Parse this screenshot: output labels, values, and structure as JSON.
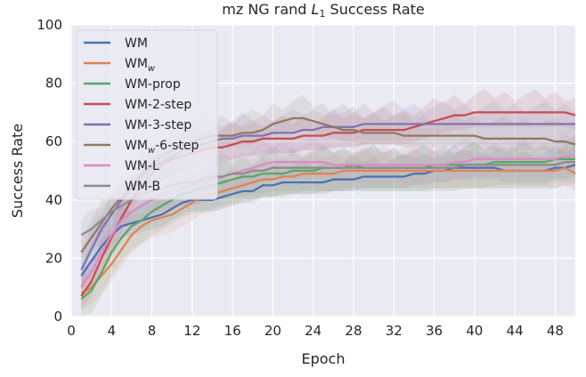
{
  "chart_data": {
    "type": "line",
    "title": {
      "pre": "mz NG rand ",
      "italic": "L",
      "sub": "1",
      "post": " Success Rate"
    },
    "xlabel": "Epoch",
    "ylabel": "Success Rate",
    "xlim": [
      0,
      50
    ],
    "ylim": [
      0,
      100
    ],
    "xticks": [
      0,
      4,
      8,
      12,
      16,
      20,
      24,
      28,
      32,
      36,
      40,
      44,
      48
    ],
    "yticks": [
      0,
      20,
      40,
      60,
      80,
      100
    ],
    "grid": true,
    "legend_position": "top-left",
    "x": [
      1,
      2,
      3,
      4,
      5,
      6,
      7,
      8,
      9,
      10,
      11,
      12,
      13,
      14,
      15,
      16,
      17,
      18,
      19,
      20,
      21,
      22,
      23,
      24,
      25,
      26,
      27,
      28,
      29,
      30,
      31,
      32,
      33,
      34,
      35,
      36,
      37,
      38,
      39,
      40,
      41,
      42,
      43,
      44,
      45,
      46,
      47,
      48,
      49,
      50
    ],
    "series": [
      {
        "name": "WM",
        "base": "WM",
        "sub": "",
        "suffix": "",
        "color": "#4c72b0",
        "values": [
          14,
          19,
          24,
          28,
          31,
          32,
          33,
          34,
          35,
          37,
          39,
          40,
          40,
          40,
          41,
          42,
          43,
          43,
          45,
          45,
          46,
          46,
          46,
          46,
          46,
          47,
          47,
          47,
          48,
          48,
          48,
          48,
          48,
          49,
          49,
          50,
          50,
          51,
          51,
          51,
          51,
          51,
          50,
          50,
          50,
          50,
          50,
          51,
          51,
          52
        ]
      },
      {
        "name": "WM_w",
        "base": "WM",
        "sub": "w",
        "suffix": "",
        "color": "#dd8452",
        "values": [
          8,
          10,
          14,
          18,
          23,
          28,
          31,
          33,
          34,
          35,
          37,
          39,
          41,
          42,
          43,
          44,
          45,
          46,
          47,
          47,
          48,
          48,
          49,
          49,
          49,
          49,
          50,
          50,
          50,
          50,
          50,
          50,
          50,
          50,
          50,
          50,
          50,
          50,
          50,
          50,
          50,
          50,
          50,
          50,
          50,
          50,
          50,
          50,
          51,
          49
        ]
      },
      {
        "name": "WM-prop",
        "base": "WM-prop",
        "sub": "",
        "suffix": "",
        "color": "#55a868",
        "values": [
          6,
          9,
          15,
          22,
          27,
          31,
          33,
          36,
          38,
          40,
          42,
          43,
          44,
          45,
          46,
          47,
          48,
          48,
          49,
          49,
          49,
          50,
          50,
          50,
          51,
          51,
          51,
          52,
          51,
          51,
          51,
          51,
          51,
          51,
          51,
          52,
          52,
          52,
          52,
          52,
          52,
          53,
          53,
          53,
          53,
          53,
          53,
          54,
          54,
          54
        ]
      },
      {
        "name": "WM-2-step",
        "base": "WM-2-step",
        "sub": "",
        "suffix": "",
        "color": "#c44e52",
        "values": [
          7,
          12,
          20,
          27,
          34,
          40,
          45,
          49,
          52,
          54,
          55,
          56,
          57,
          58,
          58,
          59,
          60,
          60,
          61,
          61,
          61,
          61,
          62,
          62,
          62,
          63,
          63,
          63,
          64,
          64,
          64,
          64,
          64,
          65,
          66,
          67,
          68,
          69,
          69,
          70,
          70,
          70,
          70,
          70,
          70,
          70,
          70,
          70,
          70,
          69
        ]
      },
      {
        "name": "WM-3-step",
        "base": "WM-3-step",
        "sub": "",
        "suffix": "",
        "color": "#8172b3",
        "values": [
          16,
          23,
          30,
          35,
          40,
          44,
          48,
          51,
          53,
          55,
          57,
          58,
          59,
          60,
          61,
          61,
          62,
          62,
          62,
          63,
          63,
          63,
          64,
          64,
          65,
          65,
          65,
          65,
          66,
          66,
          66,
          66,
          66,
          66,
          66,
          66,
          66,
          66,
          66,
          66,
          66,
          66,
          66,
          66,
          66,
          66,
          66,
          66,
          66,
          66
        ]
      },
      {
        "name": "WM_w-6-step",
        "base": "WM",
        "sub": "w",
        "suffix": "-6-step",
        "color": "#937860",
        "values": [
          22,
          27,
          32,
          37,
          41,
          45,
          49,
          52,
          55,
          57,
          59,
          60,
          61,
          62,
          62,
          62,
          63,
          63,
          64,
          66,
          67,
          68,
          68,
          67,
          66,
          65,
          64,
          64,
          63,
          63,
          63,
          63,
          62,
          62,
          62,
          62,
          62,
          62,
          62,
          62,
          61,
          61,
          61,
          61,
          61,
          61,
          61,
          60,
          60,
          59
        ]
      },
      {
        "name": "WM-L",
        "base": "WM-L",
        "sub": "",
        "suffix": "",
        "color": "#da8bc3",
        "values": [
          10,
          15,
          22,
          28,
          33,
          36,
          38,
          40,
          42,
          43,
          44,
          45,
          46,
          47,
          48,
          49,
          50,
          51,
          52,
          53,
          53,
          53,
          53,
          53,
          53,
          52,
          52,
          52,
          52,
          52,
          52,
          52,
          52,
          52,
          52,
          52,
          52,
          53,
          53,
          54,
          54,
          54,
          54,
          54,
          54,
          54,
          54,
          54,
          55,
          55
        ]
      },
      {
        "name": "WM-B",
        "base": "WM-B",
        "sub": "",
        "suffix": "",
        "color": "#8c8c8c",
        "values": [
          28,
          30,
          33,
          36,
          38,
          40,
          42,
          43,
          44,
          45,
          46,
          46,
          47,
          48,
          48,
          49,
          49,
          50,
          50,
          51,
          51,
          51,
          51,
          51,
          51,
          51,
          51,
          51,
          51,
          51,
          51,
          51,
          51,
          51,
          51,
          51,
          51,
          51,
          52,
          52,
          52,
          52,
          52,
          52,
          52,
          52,
          52,
          52,
          53,
          53
        ]
      }
    ]
  }
}
